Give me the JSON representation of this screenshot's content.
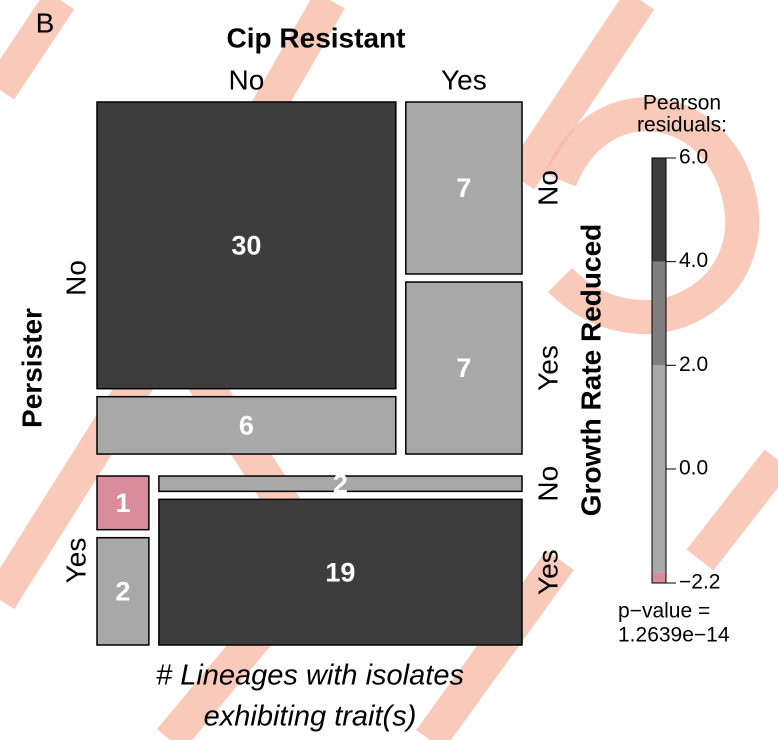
{
  "chart_data": {
    "type": "mosaic",
    "panel_label": "B",
    "column_variable": "Cip Resistant",
    "row_variable": "Persister",
    "third_variable": "Growth Rate Reduced",
    "column_levels": [
      "No",
      "Yes"
    ],
    "row_levels": [
      "No",
      "Yes"
    ],
    "third_levels": [
      "No",
      "Yes"
    ],
    "values": [
      [
        [
          30,
          6
        ],
        [
          7,
          7
        ]
      ],
      [
        [
          1,
          2
        ],
        [
          2,
          19
        ]
      ]
    ],
    "colors": [
      [
        [
          "#3d3d3d",
          "#a8a8a8"
        ],
        [
          "#a8a8a8",
          "#a8a8a8"
        ]
      ],
      [
        [
          "#d98d9c",
          "#a8a8a8"
        ],
        [
          "#a8a8a8",
          "#3d3d3d"
        ]
      ]
    ],
    "legend": {
      "title": [
        "Pearson",
        "residuals:"
      ],
      "lim": [
        -2.2,
        6
      ],
      "ticks": [
        {
          "value": 6,
          "label": "6.0"
        },
        {
          "value": 4,
          "label": "4.0"
        },
        {
          "value": 2,
          "label": "2.0"
        },
        {
          "value": 0,
          "label": "0.0"
        },
        {
          "value": -2.2,
          "label": "−2.2"
        }
      ],
      "bands": [
        {
          "from": -2.2,
          "to": -2,
          "color": "#d98d9c"
        },
        {
          "from": -2,
          "to": 2,
          "color": "#a8a8a8"
        },
        {
          "from": 2,
          "to": 4,
          "color": "#7f7f7f"
        },
        {
          "from": 4,
          "to": 6,
          "color": "#3d3d3d"
        }
      ]
    },
    "p_value_text": [
      "p−value =",
      "1.2639e−14"
    ],
    "caption": [
      "# Lineages with isolates",
      "exhibiting trait(s)"
    ]
  }
}
